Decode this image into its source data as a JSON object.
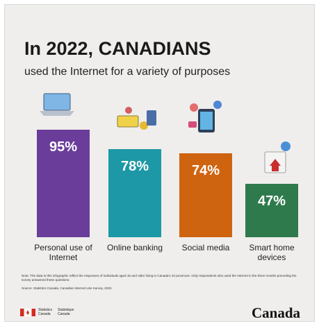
{
  "chart_data": {
    "type": "bar",
    "title": "In 2022, CANADIANS",
    "subtitle": "used the Internet for a variety of purposes",
    "categories": [
      "Personal use of Internet",
      "Online banking",
      "Social media",
      "Smart home devices"
    ],
    "values": [
      95,
      78,
      74,
      47
    ],
    "value_labels": [
      "95%",
      "78%",
      "74%",
      "47%"
    ],
    "colors": [
      "#6a3d9a",
      "#1c98a6",
      "#cf6410",
      "#2f7a4c"
    ],
    "note": "Note: The data in this infographic reflect the responses of individuals aged 15 and older living in Canada's 10 provinces. Only respondents who used the Internet in the three months preceding the survey answered these questions.",
    "source": "Source: Statistics Canada, Canadian Internet Use Survey, 2022.",
    "agency_en": "Statistics Canada",
    "agency_fr": "Statistique Canada",
    "wordmark": "Canada"
  }
}
